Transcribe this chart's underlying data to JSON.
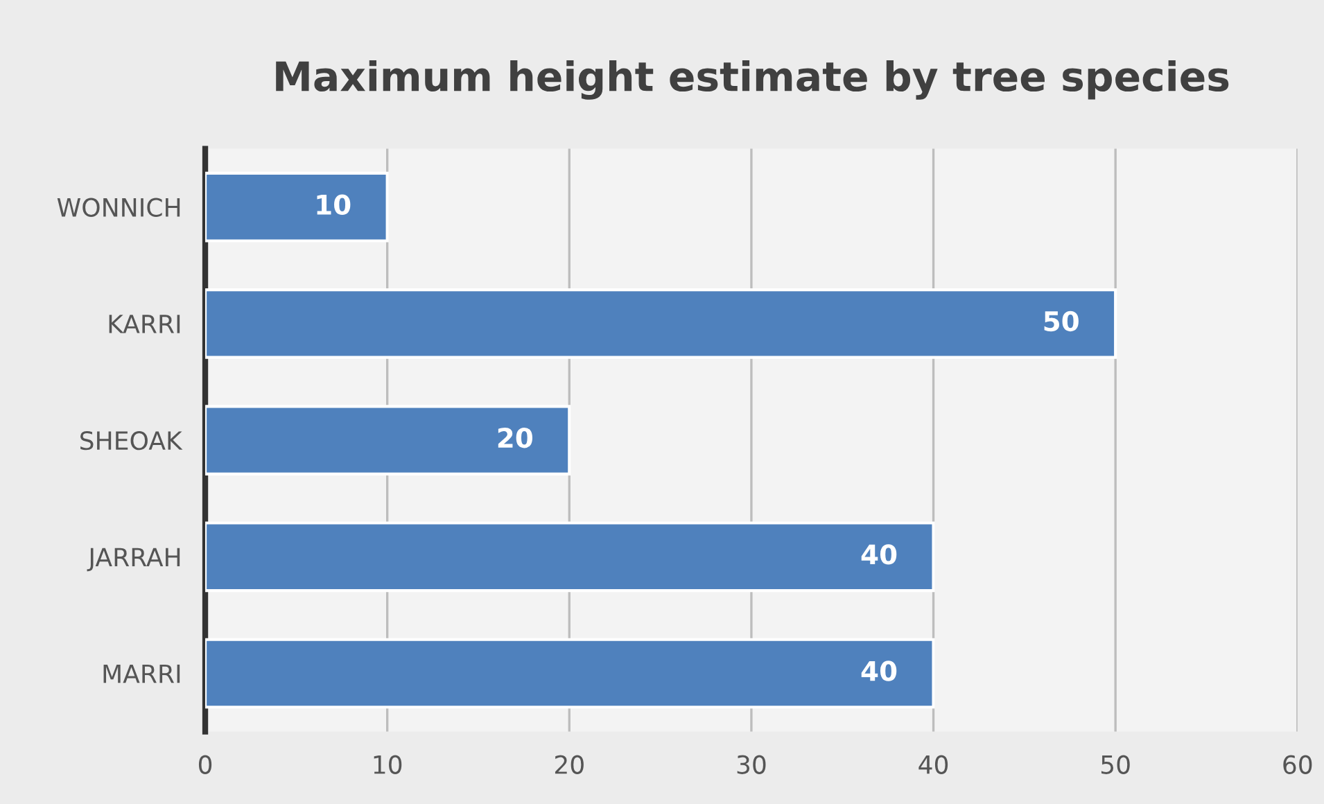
{
  "chart_data": {
    "type": "bar",
    "orientation": "horizontal",
    "title": "Maximum height estimate by tree species",
    "categories": [
      "WONNICH",
      "KARRI",
      "SHEOAK",
      "JARRAH",
      "MARRI"
    ],
    "values": [
      10,
      50,
      20,
      40,
      40
    ],
    "color": "#4f81bd",
    "xlim": [
      0,
      60
    ],
    "xticks": [
      0,
      10,
      20,
      30,
      40,
      50,
      60
    ],
    "grid": "x",
    "data_labels": true
  }
}
